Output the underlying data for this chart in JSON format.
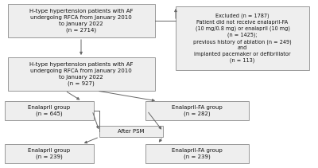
{
  "bg_color": "#ffffff",
  "box_edge_color": "#999999",
  "box_face_color": "#eeeeee",
  "arrow_color": "#666666",
  "text_color": "#111111",
  "font_size": 5.0,
  "font_size_excl": 4.7,
  "top_lines": [
    "H-type hypertension patients with AF",
    "undergoing RFCA from January 2010",
    "to January 2022",
    "(n = 2714)"
  ],
  "excl_lines": [
    "Excluded (n = 1787)",
    "Patient did not receive enalapril-FA",
    "(10 mg/0.8 mg) or enalapril (10 mg)",
    "(n = 1425);",
    "previous history of ablation (n = 249)",
    "and",
    "implanted pacemaker or defibrillator",
    "(n = 113)"
  ],
  "mid_lines": [
    "H-type hypertension patients with AF",
    "undergoing RFCA from January 2010",
    "to January 2022",
    "(n = 927)"
  ],
  "en_lines": [
    "Enalapril group",
    "(n = 645)"
  ],
  "enfa_lines": [
    "Enalapril-FA group",
    "(n = 282)"
  ],
  "psm_lines": [
    "After PSM"
  ],
  "en2_lines": [
    "Enalapril group",
    "(n = 239)"
  ],
  "enfa2_lines": [
    "Enalapril-FA group",
    "(n = 239)"
  ]
}
